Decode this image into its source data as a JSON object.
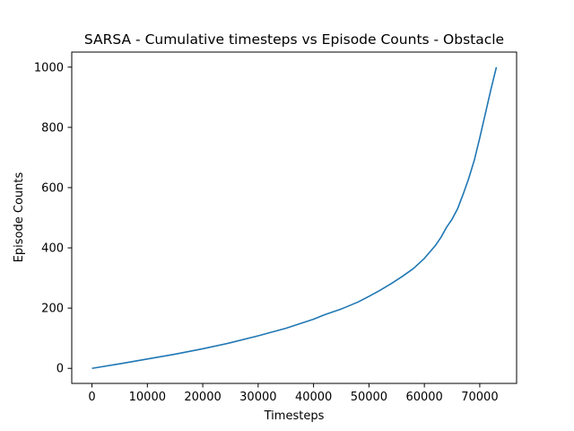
{
  "chart_data": {
    "type": "line",
    "title": "SARSA - Cumulative timesteps vs Episode Counts - Obstacle",
    "xlabel": "Timesteps",
    "ylabel": "Episode Counts",
    "xlim": [
      -3650,
      76650
    ],
    "ylim": [
      -50,
      1050
    ],
    "xticks": [
      0,
      10000,
      20000,
      30000,
      40000,
      50000,
      60000,
      70000
    ],
    "xtick_labels": [
      "0",
      "10000",
      "20000",
      "30000",
      "40000",
      "50000",
      "60000",
      "70000"
    ],
    "yticks": [
      0,
      200,
      400,
      600,
      800,
      1000
    ],
    "ytick_labels": [
      "0",
      "200",
      "400",
      "600",
      "800",
      "1000"
    ],
    "grid": false,
    "series": [
      {
        "color": "#1f77b4",
        "x": [
          0,
          5000,
          10000,
          15000,
          20000,
          25000,
          30000,
          35000,
          40000,
          42000,
          45000,
          48000,
          50000,
          52000,
          54000,
          56000,
          58000,
          60000,
          62000,
          63000,
          64000,
          65000,
          66000,
          67000,
          68000,
          69000,
          70000,
          71000,
          72000,
          73000
        ],
        "y": [
          0,
          15,
          31,
          47,
          65,
          85,
          108,
          133,
          163,
          178,
          197,
          220,
          239,
          259,
          281,
          305,
          331,
          365,
          408,
          435,
          468,
          495,
          530,
          578,
          630,
          690,
          765,
          845,
          925,
          1000
        ]
      }
    ]
  }
}
